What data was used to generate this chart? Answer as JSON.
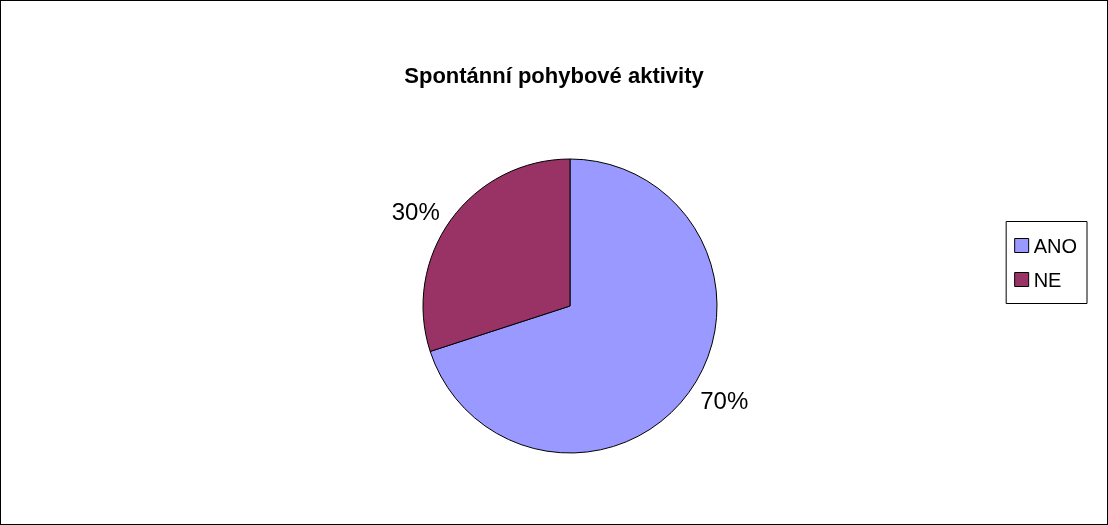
{
  "chart_data": {
    "type": "pie",
    "title": "Spontánní pohybové aktivity",
    "categories": [
      "ANO",
      "NE"
    ],
    "values": [
      70,
      30
    ],
    "colors": [
      "#9999ff",
      "#993366"
    ],
    "value_labels": [
      "70%",
      "30%"
    ],
    "legend": "right"
  }
}
